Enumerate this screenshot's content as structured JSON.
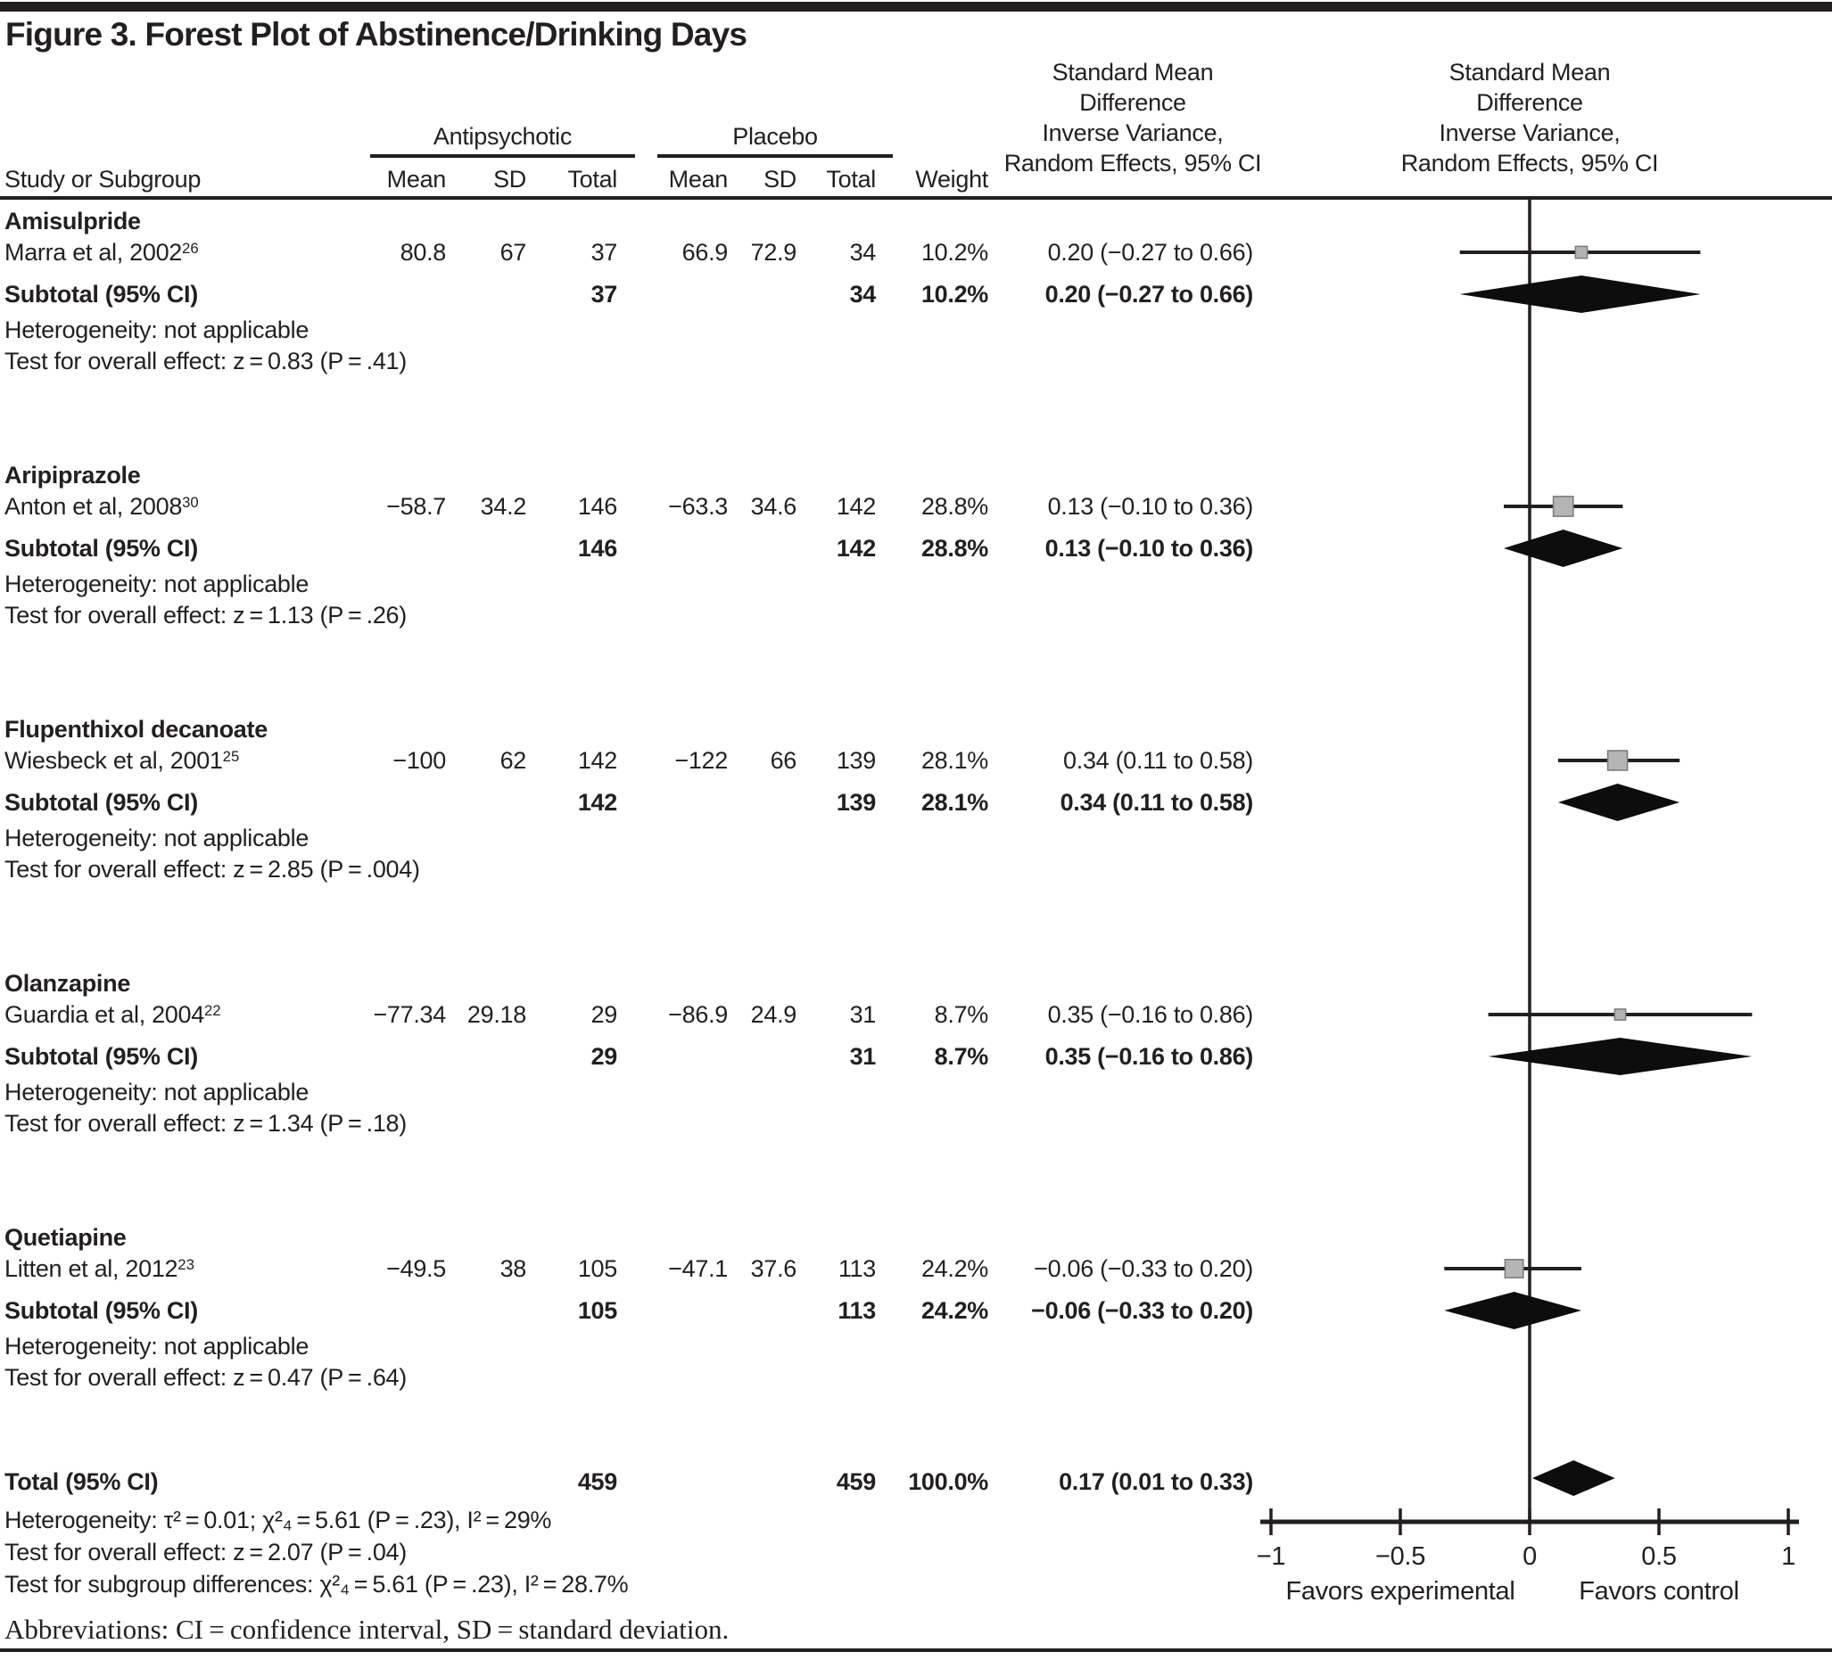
{
  "chart_data": {
    "type": "forest",
    "title": "Figure 3. Forest Plot of Abstinence/Drinking Days",
    "columns": {
      "study": "Study or Subgroup",
      "group1": "Antipsychotic",
      "group2": "Placebo",
      "mean1": "Mean",
      "sd1": "SD",
      "total1": "Total",
      "mean2": "Mean",
      "sd2": "SD",
      "total2": "Total",
      "weight": "Weight"
    },
    "effect_header_lines": [
      "Standard Mean",
      "Difference",
      "Inverse Variance,",
      "Random Effects, 95% CI"
    ],
    "axis": {
      "ticks": [
        {
          "v": -1,
          "label": "−1"
        },
        {
          "v": -0.5,
          "label": "−0.5"
        },
        {
          "v": 0,
          "label": "0"
        },
        {
          "v": 0.5,
          "label": "0.5"
        },
        {
          "v": 1,
          "label": "1"
        }
      ],
      "min": -1,
      "max": 1,
      "favors_left": "Favors experimental",
      "favors_right": "Favors control"
    },
    "groups": [
      {
        "name": "Amisulpride",
        "study": {
          "label": "Marra et al, 2002",
          "ref": "26",
          "mean1": "80.8",
          "sd1": "67",
          "total1": "37",
          "mean2": "66.9",
          "sd2": "72.9",
          "total2": "34",
          "weight": "10.2%",
          "weight_pct": 10.2,
          "ci_text": "0.20 (−0.27 to 0.66)",
          "smd": 0.2,
          "ci_low": -0.27,
          "ci_high": 0.66
        },
        "subtotal": {
          "label": "Subtotal (95% CI)",
          "total1": "37",
          "total2": "34",
          "weight": "10.2%",
          "ci_text": "0.20 (−0.27 to 0.66)",
          "smd": 0.2,
          "ci_low": -0.27,
          "ci_high": 0.66
        },
        "heterogeneity": "Heterogeneity: not applicable",
        "test": "Test for overall effect: z = 0.83 (P = .41)"
      },
      {
        "name": "Aripiprazole",
        "study": {
          "label": "Anton et al, 2008",
          "ref": "30",
          "mean1": "−58.7",
          "sd1": "34.2",
          "total1": "146",
          "mean2": "−63.3",
          "sd2": "34.6",
          "total2": "142",
          "weight": "28.8%",
          "weight_pct": 28.8,
          "ci_text": "0.13 (−0.10 to 0.36)",
          "smd": 0.13,
          "ci_low": -0.1,
          "ci_high": 0.36
        },
        "subtotal": {
          "label": "Subtotal (95% CI)",
          "total1": "146",
          "total2": "142",
          "weight": "28.8%",
          "ci_text": "0.13 (−0.10 to 0.36)",
          "smd": 0.13,
          "ci_low": -0.1,
          "ci_high": 0.36
        },
        "heterogeneity": "Heterogeneity: not applicable",
        "test": "Test for overall effect: z = 1.13 (P = .26)"
      },
      {
        "name": "Flupenthixol decanoate",
        "study": {
          "label": "Wiesbeck et al, 2001",
          "ref": "25",
          "mean1": "−100",
          "sd1": "62",
          "total1": "142",
          "mean2": "−122",
          "sd2": "66",
          "total2": "139",
          "weight": "28.1%",
          "weight_pct": 28.1,
          "ci_text": "0.34 (0.11 to 0.58)",
          "smd": 0.34,
          "ci_low": 0.11,
          "ci_high": 0.58
        },
        "subtotal": {
          "label": "Subtotal (95% CI)",
          "total1": "142",
          "total2": "139",
          "weight": "28.1%",
          "ci_text": "0.34 (0.11 to 0.58)",
          "smd": 0.34,
          "ci_low": 0.11,
          "ci_high": 0.58
        },
        "heterogeneity": "Heterogeneity: not applicable",
        "test": "Test for overall effect: z = 2.85 (P = .004)"
      },
      {
        "name": "Olanzapine",
        "study": {
          "label": "Guardia et al, 2004",
          "ref": "22",
          "mean1": "−77.34",
          "sd1": "29.18",
          "total1": "29",
          "mean2": "−86.9",
          "sd2": "24.9",
          "total2": "31",
          "weight": "8.7%",
          "weight_pct": 8.7,
          "ci_text": "0.35 (−0.16 to 0.86)",
          "smd": 0.35,
          "ci_low": -0.16,
          "ci_high": 0.86
        },
        "subtotal": {
          "label": "Subtotal (95% CI)",
          "total1": "29",
          "total2": "31",
          "weight": "8.7%",
          "ci_text": "0.35 (−0.16 to 0.86)",
          "smd": 0.35,
          "ci_low": -0.16,
          "ci_high": 0.86
        },
        "heterogeneity": "Heterogeneity: not applicable",
        "test": "Test for overall effect: z = 1.34 (P = .18)"
      },
      {
        "name": "Quetiapine",
        "study": {
          "label": "Litten et al, 2012",
          "ref": "23",
          "mean1": "−49.5",
          "sd1": "38",
          "total1": "105",
          "mean2": "−47.1",
          "sd2": "37.6",
          "total2": "113",
          "weight": "24.2%",
          "weight_pct": 24.2,
          "ci_text": "−0.06 (−0.33 to 0.20)",
          "smd": -0.06,
          "ci_low": -0.33,
          "ci_high": 0.2
        },
        "subtotal": {
          "label": "Subtotal (95% CI)",
          "total1": "105",
          "total2": "113",
          "weight": "24.2%",
          "ci_text": "−0.06 (−0.33 to 0.20)",
          "smd": -0.06,
          "ci_low": -0.33,
          "ci_high": 0.2
        },
        "heterogeneity": "Heterogeneity: not applicable",
        "test": "Test for overall effect: z = 0.47 (P = .64)"
      }
    ],
    "total": {
      "label": "Total (95% CI)",
      "total1": "459",
      "total2": "459",
      "weight": "100.0%",
      "ci_text": "0.17 (0.01 to 0.33)",
      "smd": 0.17,
      "ci_low": 0.01,
      "ci_high": 0.33,
      "heterogeneity": "Heterogeneity: τ² = 0.01; χ²₄ = 5.61 (P = .23), I² = 29%",
      "test_overall": "Test for overall effect: z = 2.07 (P = .04)",
      "test_subgroup": "Test for subgroup differences: χ²₄ = 5.61 (P = .23), I² = 28.7%"
    },
    "footnote": "Abbreviations: CI = confidence interval, SD = standard deviation.",
    "colors": {
      "ink": "#231f20",
      "square_fill": "#b4b4b4",
      "square_stroke": "#7a7a7a",
      "diamond_fill": "#0d0d0d"
    }
  }
}
